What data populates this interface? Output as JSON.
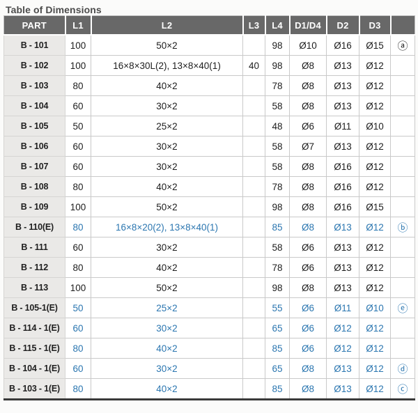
{
  "title": "Table of Dimensions",
  "colors": {
    "accent_blue": "#2b76b0",
    "header_bg": "#686868",
    "part_column_bg": "#eae9e7",
    "text_dark": "#1d1d1d"
  },
  "table": {
    "columns": [
      "PART",
      "L1",
      "L2",
      "L3",
      "L4",
      "D1/D4",
      "D2",
      "D3",
      ""
    ],
    "rows": [
      {
        "part": "B - 101",
        "l1": "100",
        "l2": "50×2",
        "l3": "",
        "l4": "98",
        "d1d4": "Ø10",
        "d2": "Ø16",
        "d3": "Ø15",
        "note": "ⓐ",
        "highlight": false
      },
      {
        "part": "B - 102",
        "l1": "100",
        "l2": "16×8×30L(2), 13×8×40(1)",
        "l3": "40",
        "l4": "98",
        "d1d4": "Ø8",
        "d2": "Ø13",
        "d3": "Ø12",
        "note": "",
        "highlight": false
      },
      {
        "part": "B - 103",
        "l1": "80",
        "l2": "40×2",
        "l3": "",
        "l4": "78",
        "d1d4": "Ø8",
        "d2": "Ø13",
        "d3": "Ø12",
        "note": "",
        "highlight": false
      },
      {
        "part": "B - 104",
        "l1": "60",
        "l2": "30×2",
        "l3": "",
        "l4": "58",
        "d1d4": "Ø8",
        "d2": "Ø13",
        "d3": "Ø12",
        "note": "",
        "highlight": false
      },
      {
        "part": "B - 105",
        "l1": "50",
        "l2": "25×2",
        "l3": "",
        "l4": "48",
        "d1d4": "Ø6",
        "d2": "Ø11",
        "d3": "Ø10",
        "note": "",
        "highlight": false
      },
      {
        "part": "B - 106",
        "l1": "60",
        "l2": "30×2",
        "l3": "",
        "l4": "58",
        "d1d4": "Ø7",
        "d2": "Ø13",
        "d3": "Ø12",
        "note": "",
        "highlight": false
      },
      {
        "part": "B - 107",
        "l1": "60",
        "l2": "30×2",
        "l3": "",
        "l4": "58",
        "d1d4": "Ø8",
        "d2": "Ø16",
        "d3": "Ø12",
        "note": "",
        "highlight": false
      },
      {
        "part": "B - 108",
        "l1": "80",
        "l2": "40×2",
        "l3": "",
        "l4": "78",
        "d1d4": "Ø8",
        "d2": "Ø16",
        "d3": "Ø12",
        "note": "",
        "highlight": false
      },
      {
        "part": "B - 109",
        "l1": "100",
        "l2": "50×2",
        "l3": "",
        "l4": "98",
        "d1d4": "Ø8",
        "d2": "Ø16",
        "d3": "Ø15",
        "note": "",
        "highlight": false
      },
      {
        "part": "B - 110(E)",
        "l1": "80",
        "l2": "16×8×20(2), 13×8×40(1)",
        "l3": "",
        "l4": "85",
        "d1d4": "Ø8",
        "d2": "Ø13",
        "d3": "Ø12",
        "note": "ⓑ",
        "highlight": true
      },
      {
        "part": "B - 111",
        "l1": "60",
        "l2": "30×2",
        "l3": "",
        "l4": "58",
        "d1d4": "Ø6",
        "d2": "Ø13",
        "d3": "Ø12",
        "note": "",
        "highlight": false
      },
      {
        "part": "B - 112",
        "l1": "80",
        "l2": "40×2",
        "l3": "",
        "l4": "78",
        "d1d4": "Ø6",
        "d2": "Ø13",
        "d3": "Ø12",
        "note": "",
        "highlight": false
      },
      {
        "part": "B - 113",
        "l1": "100",
        "l2": "50×2",
        "l3": "",
        "l4": "98",
        "d1d4": "Ø8",
        "d2": "Ø13",
        "d3": "Ø12",
        "note": "",
        "highlight": false
      },
      {
        "part": "B - 105-1(E)",
        "l1": "50",
        "l2": "25×2",
        "l3": "",
        "l4": "55",
        "d1d4": "Ø6",
        "d2": "Ø11",
        "d3": "Ø10",
        "note": "ⓔ",
        "highlight": true
      },
      {
        "part": "B - 114 - 1(E)",
        "l1": "60",
        "l2": "30×2",
        "l3": "",
        "l4": "65",
        "d1d4": "Ø6",
        "d2": "Ø12",
        "d3": "Ø12",
        "note": "",
        "highlight": true
      },
      {
        "part": "B - 115 - 1(E)",
        "l1": "80",
        "l2": "40×2",
        "l3": "",
        "l4": "85",
        "d1d4": "Ø6",
        "d2": "Ø12",
        "d3": "Ø12",
        "note": "",
        "highlight": true
      },
      {
        "part": "B - 104 - 1(E)",
        "l1": "60",
        "l2": "30×2",
        "l3": "",
        "l4": "65",
        "d1d4": "Ø8",
        "d2": "Ø13",
        "d3": "Ø12",
        "note": "ⓓ",
        "highlight": true
      },
      {
        "part": "B - 103 - 1(E)",
        "l1": "80",
        "l2": "40×2",
        "l3": "",
        "l4": "85",
        "d1d4": "Ø8",
        "d2": "Ø13",
        "d3": "Ø12",
        "note": "ⓒ",
        "highlight": true
      }
    ]
  }
}
